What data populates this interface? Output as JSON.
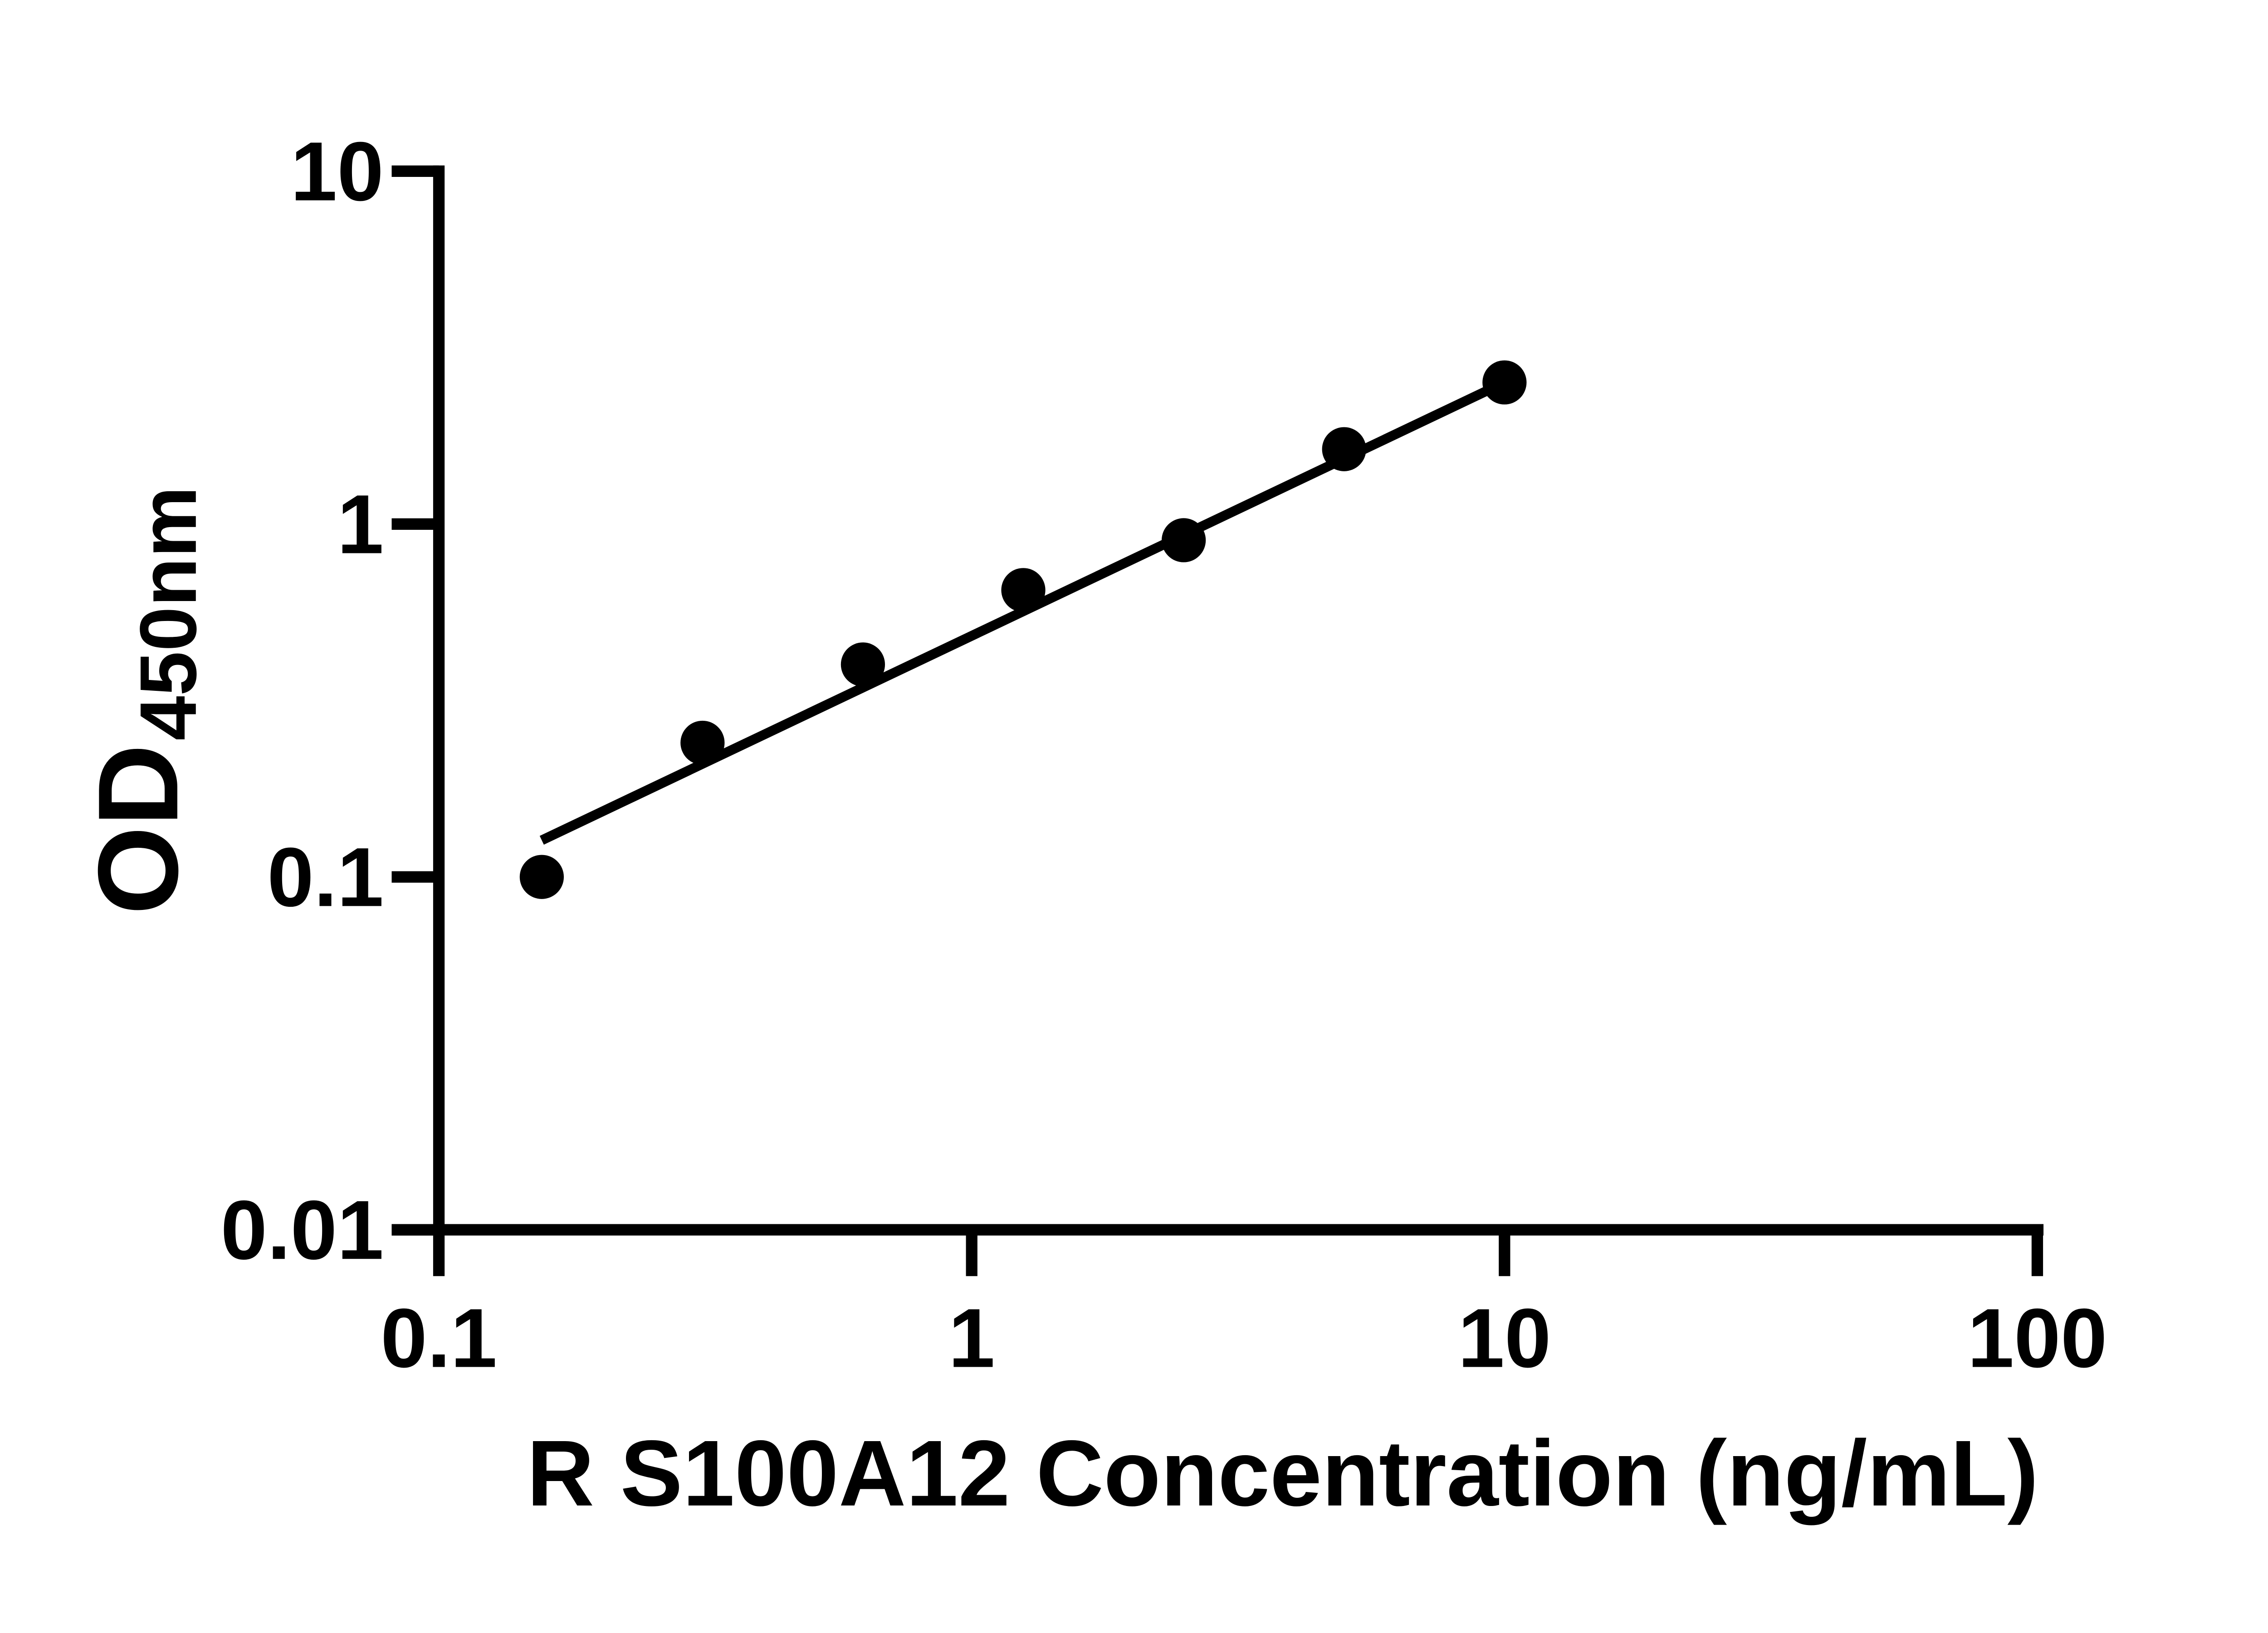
{
  "figure": {
    "background_color": "#ffffff",
    "ink_color": "#000000"
  },
  "chart_data": {
    "type": "scatter",
    "title": "",
    "xlabel": "R S100A12 Concentration (ng/mL)",
    "ylabel_main": "OD",
    "ylabel_sub": "450nm",
    "x_scale": "log10",
    "y_scale": "log10",
    "xlim": [
      0.1,
      100
    ],
    "ylim": [
      0.01,
      10
    ],
    "grid": false,
    "legend_position": "none",
    "x_ticks": [
      {
        "value": 0.1,
        "label": "0.1"
      },
      {
        "value": 1,
        "label": "1"
      },
      {
        "value": 10,
        "label": "10"
      },
      {
        "value": 100,
        "label": "100"
      }
    ],
    "y_ticks": [
      {
        "value": 10,
        "label": "10"
      },
      {
        "value": 1,
        "label": "1"
      },
      {
        "value": 0.1,
        "label": "0.1"
      },
      {
        "value": 0.01,
        "label": "0.01"
      }
    ],
    "series": [
      {
        "name": "standard-curve-points",
        "marker": "filled-circle",
        "color": "#000000",
        "x": [
          0.156,
          0.3125,
          0.625,
          1.25,
          2.5,
          5,
          10
        ],
        "od": [
          0.1,
          0.24,
          0.4,
          0.65,
          0.9,
          1.63,
          2.52
        ]
      }
    ],
    "fit_line": {
      "name": "linear-regression-line",
      "color": "#000000",
      "x_start": 0.156,
      "od_start": 0.127,
      "x_end": 10,
      "od_end": 2.52
    }
  }
}
